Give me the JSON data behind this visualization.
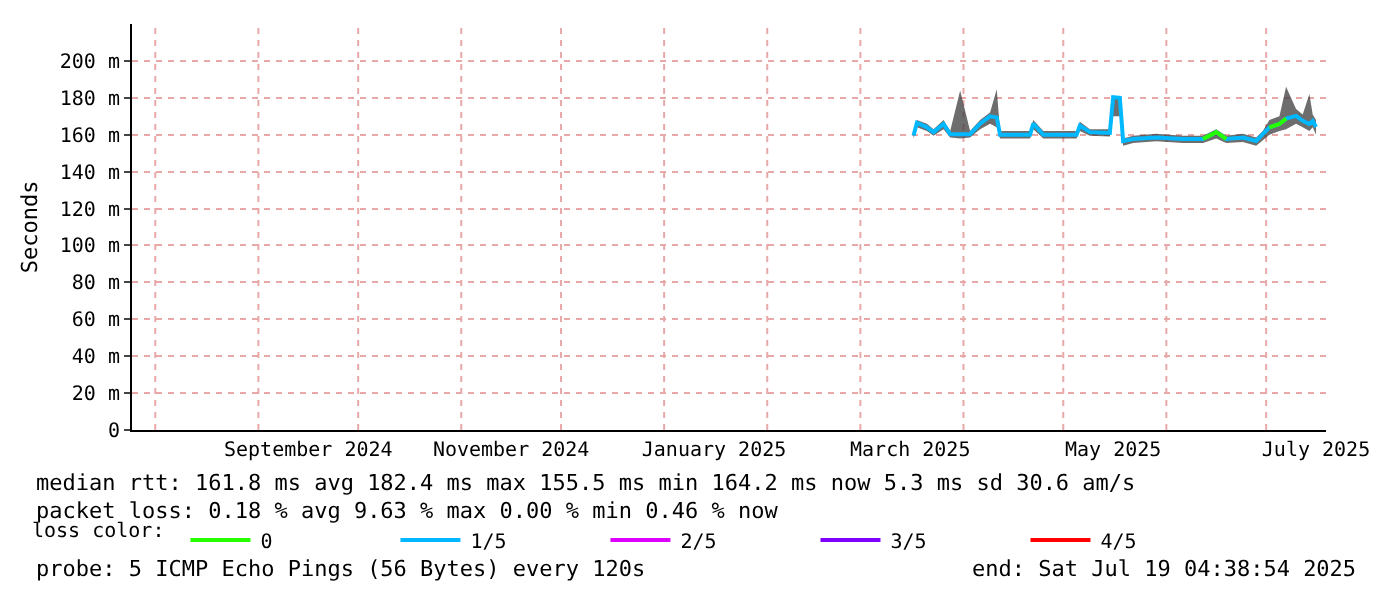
{
  "chart_data": {
    "type": "line",
    "ylabel": "Seconds",
    "legend_title": "loss color:",
    "legend": "bottom",
    "grid": true,
    "marker": "none",
    "line_style": "solid",
    "x": [
      "2025-03-17",
      "2025-03-18",
      "2025-03-21",
      "2025-03-23",
      "2025-03-26",
      "2025-03-28",
      "2025-03-31",
      "2025-04-03",
      "2025-04-06",
      "2025-04-09",
      "2025-04-11",
      "2025-04-12",
      "2025-04-21",
      "2025-04-22",
      "2025-04-25",
      "2025-05-05",
      "2025-05-06",
      "2025-05-09",
      "2025-05-15",
      "2025-05-16",
      "2025-05-18",
      "2025-05-19",
      "2025-05-22",
      "2025-05-29",
      "2025-06-06",
      "2025-06-12",
      "2025-06-16",
      "2025-06-19",
      "2025-06-24",
      "2025-06-28",
      "2025-06-30",
      "2025-07-02",
      "2025-07-05",
      "2025-07-07",
      "2025-07-10",
      "2025-07-12",
      "2025-07-14",
      "2025-07-15",
      "2025-07-16"
    ],
    "series": [
      {
        "name": "0",
        "color": "#26ff00",
        "values": [
          null,
          null,
          null,
          null,
          null,
          null,
          null,
          null,
          null,
          null,
          null,
          null,
          null,
          null,
          null,
          null,
          null,
          null,
          null,
          null,
          null,
          null,
          null,
          null,
          null,
          157.7,
          161.4,
          157.7,
          null,
          null,
          null,
          164,
          165.8,
          168.7,
          null,
          null,
          null,
          null,
          null
        ]
      },
      {
        "name": "1/5",
        "color": "#00b8ff",
        "values": [
          159.6,
          166.5,
          164,
          161.4,
          165.8,
          160.3,
          160.3,
          160.3,
          166,
          170,
          169.4,
          160,
          160,
          166,
          160,
          160,
          165,
          161.4,
          161,
          180.3,
          180,
          156.6,
          157.7,
          158.5,
          157.7,
          157.7,
          161.4,
          157.7,
          158.5,
          156.6,
          160.3,
          164,
          165.8,
          168.7,
          170.2,
          167.5,
          165.8,
          167.5,
          164.2
        ],
        "lower": [
          158,
          164,
          162,
          159.5,
          163,
          158.5,
          158,
          158.5,
          163,
          166,
          164,
          158,
          158,
          163,
          158,
          158,
          162,
          159.5,
          159,
          170,
          170,
          154,
          155.5,
          156.5,
          155.5,
          155.5,
          158,
          155.5,
          156,
          154,
          157,
          160,
          162,
          163,
          166,
          164,
          162,
          164,
          160
        ],
        "upper": [
          161,
          168,
          166,
          163,
          168,
          162,
          184,
          162,
          168,
          172,
          184.7,
          162,
          162,
          168,
          162,
          162,
          167,
          163,
          163,
          181,
          181,
          158,
          159.5,
          160.5,
          159.5,
          159.5,
          163,
          159.5,
          160.5,
          158.5,
          162,
          168,
          170,
          186,
          174,
          171,
          182,
          171,
          168
        ]
      },
      {
        "name": "2/5",
        "color": "#dd00ff",
        "values": [
          null,
          null,
          null,
          null,
          null,
          null,
          null,
          null,
          null,
          null,
          null,
          null,
          null,
          null,
          null,
          null,
          null,
          null,
          null,
          null,
          null,
          null,
          null,
          null,
          null,
          null,
          null,
          null,
          null,
          null,
          null,
          null,
          null,
          null,
          null,
          null,
          null,
          null,
          null
        ]
      },
      {
        "name": "3/5",
        "color": "#7f00ff",
        "values": [
          null,
          null,
          null,
          null,
          null,
          null,
          null,
          null,
          null,
          null,
          null,
          null,
          null,
          null,
          null,
          null,
          null,
          null,
          null,
          null,
          null,
          null,
          null,
          null,
          null,
          null,
          null,
          null,
          null,
          null,
          null,
          null,
          null,
          null,
          null,
          null,
          null,
          null,
          null
        ]
      },
      {
        "name": "4/5",
        "color": "#ff0000",
        "values": [
          null,
          null,
          null,
          null,
          null,
          null,
          null,
          null,
          null,
          null,
          null,
          null,
          null,
          null,
          null,
          null,
          null,
          null,
          null,
          null,
          null,
          null,
          null,
          null,
          null,
          null,
          null,
          null,
          null,
          null,
          null,
          null,
          null,
          null,
          null,
          null,
          null,
          null,
          null
        ]
      }
    ],
    "xlim": [
      "2024-07-25",
      "2025-07-19"
    ],
    "xticks": [
      {
        "value": "2024-08-01",
        "label": null
      },
      {
        "value": "2024-09-01",
        "label": null
      },
      {
        "value": "2024-09-16",
        "label": "September 2024"
      },
      {
        "value": "2024-10-01",
        "label": null
      },
      {
        "value": "2024-11-01",
        "label": null
      },
      {
        "value": "2024-11-16",
        "label": "November 2024"
      },
      {
        "value": "2024-12-01",
        "label": null
      },
      {
        "value": "2025-01-01",
        "label": null
      },
      {
        "value": "2025-01-16",
        "label": "January 2025"
      },
      {
        "value": "2025-02-01",
        "label": null
      },
      {
        "value": "2025-03-01",
        "label": null
      },
      {
        "value": "2025-03-16",
        "label": "March 2025"
      },
      {
        "value": "2025-04-01",
        "label": null
      },
      {
        "value": "2025-05-01",
        "label": null
      },
      {
        "value": "2025-05-16",
        "label": "May 2025"
      },
      {
        "value": "2025-06-01",
        "label": null
      },
      {
        "value": "2025-07-01",
        "label": null
      },
      {
        "value": "2025-07-16",
        "label": "July 2025"
      }
    ],
    "ylim": [
      0,
      220
    ],
    "yticks": [
      0,
      {
        "value": 20,
        "label": "20 m"
      },
      {
        "value": 40,
        "label": "40 m"
      },
      {
        "value": 60,
        "label": "60 m"
      },
      {
        "value": 80,
        "label": "80 m"
      },
      {
        "value": 100,
        "label": "100 m"
      },
      {
        "value": 120,
        "label": "120 m"
      },
      {
        "value": 140,
        "label": "140 m"
      },
      {
        "value": 160,
        "label": "160 m"
      },
      {
        "value": 180,
        "label": "180 m"
      },
      {
        "value": 200,
        "label": "200 m"
      }
    ],
    "annotations": [
      "median rtt: 161.8 ms avg 182.4 ms max 155.5 ms min 164.2 ms now 5.3 ms sd 30.6 am/s",
      "packet loss: 0.18 % avg 9.63 % max 0.00 % min 0.46 % now",
      "probe: 5 ICMP Echo Pings (56 Bytes) every 120s",
      "end: Sat Jul 19 04:38:54 2025"
    ]
  }
}
